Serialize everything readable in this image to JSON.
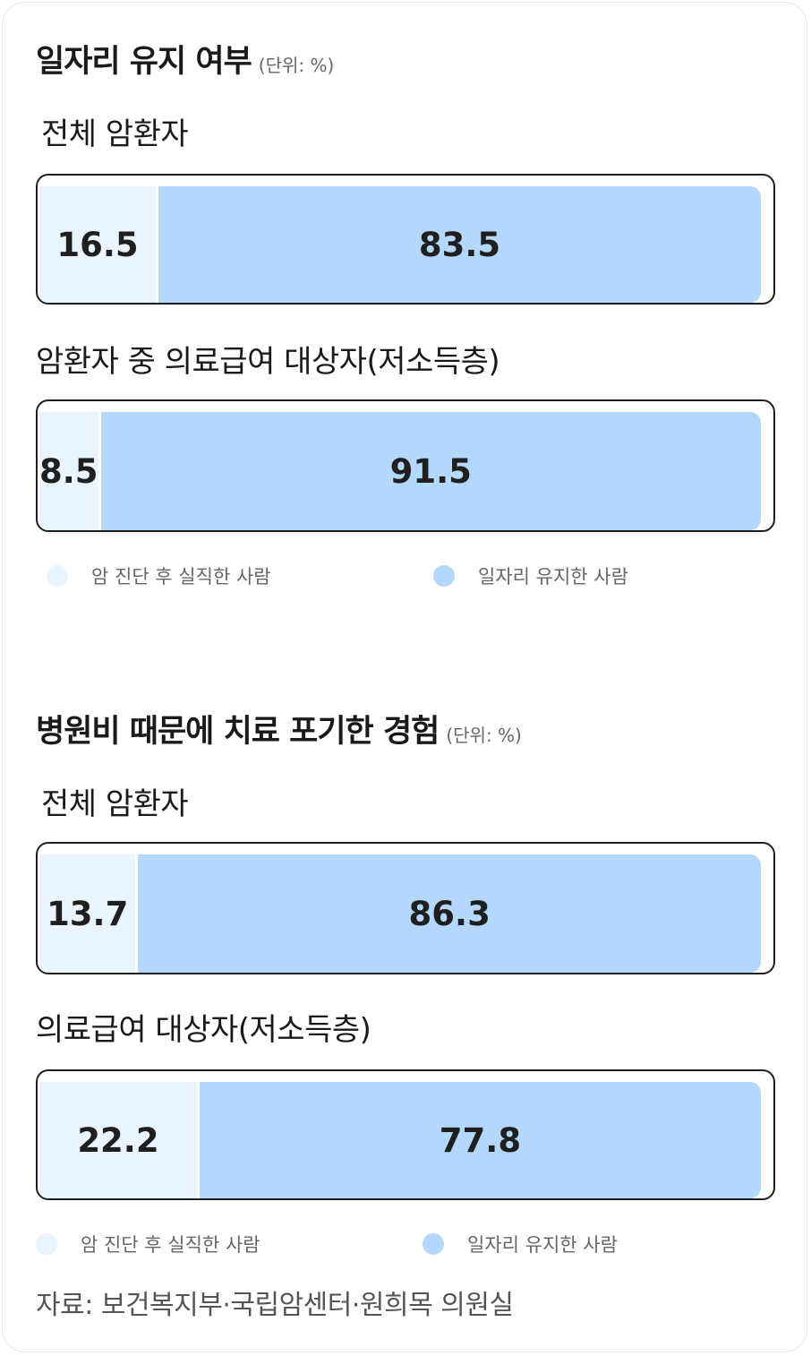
{
  "colors": {
    "lost": "#eaf4fe",
    "kept": "#b3d8fb",
    "border": "#1f1f1f"
  },
  "chart_data": [
    {
      "type": "bar",
      "stacked": true,
      "orientation": "horizontal",
      "title": "일자리 유지 여부",
      "unit": "(단위: %)",
      "categories": [
        "전체 암환자",
        "암환자 중 의료급여 대상자(저소득층)"
      ],
      "series": [
        {
          "name": "암 진단 후 실직한 사람",
          "values": [
            16.5,
            8.5
          ]
        },
        {
          "name": "일자리 유지한 사람",
          "values": [
            83.5,
            91.5
          ]
        }
      ]
    },
    {
      "type": "bar",
      "stacked": true,
      "orientation": "horizontal",
      "title": "병원비 때문에 치료 포기한 경험",
      "unit": "(단위: %)",
      "categories": [
        "전체 암환자",
        "의료급여 대상자(저소득층)"
      ],
      "series": [
        {
          "name": "암 진단 후 실직한 사람",
          "values": [
            13.7,
            22.2
          ]
        },
        {
          "name": "일자리 유지한 사람",
          "values": [
            86.3,
            77.8
          ]
        }
      ]
    }
  ],
  "source": "자료: 보건복지부·국립암센터·원희목 의원실"
}
